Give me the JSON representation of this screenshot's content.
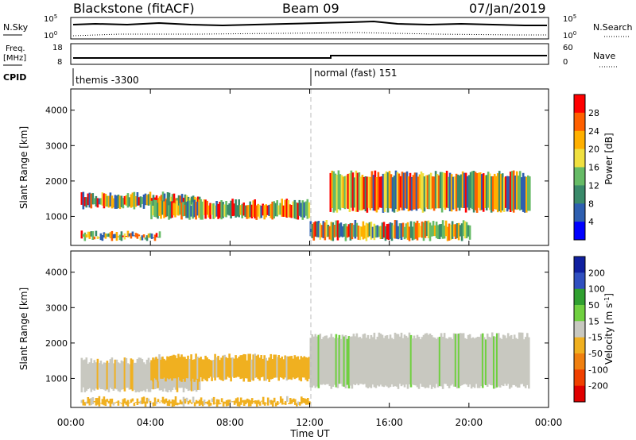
{
  "header": {
    "station": "Blackstone (fitACF)",
    "beam": "Beam 09",
    "date": "07/Jan/2019"
  },
  "noise_panel": {
    "left_label": "N.Sky",
    "right_label": "N.Search",
    "left_ticks": [
      "10^5",
      "10^0"
    ],
    "right_ticks": [
      "10^5",
      "10^0"
    ]
  },
  "freq_panel": {
    "left_label_1": "Freq.",
    "left_label_2": "[MHz]",
    "right_label": "Nave",
    "left_ticks": [
      "18",
      "8"
    ],
    "right_ticks": [
      "60",
      "0"
    ]
  },
  "cpid": {
    "label": "CPID",
    "segments": [
      {
        "name": "themis -3300",
        "start_hour": 0
      },
      {
        "name": "normal (fast) 151",
        "start_hour": 12
      }
    ]
  },
  "chart_data": [
    {
      "type": "heatmap",
      "ylabel": "Slant Range [km]",
      "y_ticks": [
        "1000",
        "2000",
        "3000",
        "4000"
      ],
      "ylim": [
        180,
        4600
      ],
      "xlim": [
        0,
        24
      ],
      "colorbar": {
        "label": "Power [dB]",
        "levels": [
          "4",
          "8",
          "12",
          "16",
          "20",
          "24",
          "28"
        ],
        "colors": [
          "#0000ff",
          "#2e5fb0",
          "#3a8a6a",
          "#66bb66",
          "#f0e040",
          "#ffb000",
          "#ff6000",
          "#ff0000"
        ]
      },
      "bands": [
        {
          "t": [
            0.5,
            6.5
          ],
          "r": [
            1200,
            1700
          ]
        },
        {
          "t": [
            0.5,
            4.5
          ],
          "r": [
            300,
            600
          ]
        },
        {
          "t": [
            4.0,
            12.0
          ],
          "r": [
            900,
            1500
          ]
        },
        {
          "t": [
            12.0,
            20.0
          ],
          "r": [
            300,
            900
          ]
        },
        {
          "t": [
            13.0,
            23.0
          ],
          "r": [
            1100,
            2300
          ]
        }
      ]
    },
    {
      "type": "heatmap",
      "ylabel": "Slant Range [km]",
      "y_ticks": [
        "1000",
        "2000",
        "3000",
        "4000"
      ],
      "ylim": [
        180,
        4600
      ],
      "xlim": [
        0,
        24
      ],
      "colorbar": {
        "label": "Velocity [m s^-1]",
        "levels": [
          "200",
          "100",
          "50",
          "15",
          "-15",
          "-50",
          "-100",
          "-200"
        ],
        "colors": [
          "#1020a0",
          "#3050c0",
          "#30a030",
          "#70d040",
          "#c8c8c0",
          "#f0b020",
          "#f08010",
          "#f04000",
          "#e00000"
        ]
      },
      "bands": [
        {
          "t": [
            0.5,
            6.5
          ],
          "r": [
            600,
            1600
          ],
          "v": "-15"
        },
        {
          "t": [
            4.0,
            12.0
          ],
          "r": [
            900,
            1700
          ],
          "v": "-50"
        },
        {
          "t": [
            0.5,
            12.0
          ],
          "r": [
            200,
            500
          ],
          "v": "-50"
        },
        {
          "t": [
            12.0,
            23.0
          ],
          "r": [
            700,
            2300
          ],
          "v": "15"
        }
      ]
    }
  ],
  "x_axis": {
    "label": "Time UT",
    "ticks": [
      "00:00",
      "04:00",
      "08:00",
      "12:00",
      "16:00",
      "20:00",
      "00:00"
    ]
  }
}
